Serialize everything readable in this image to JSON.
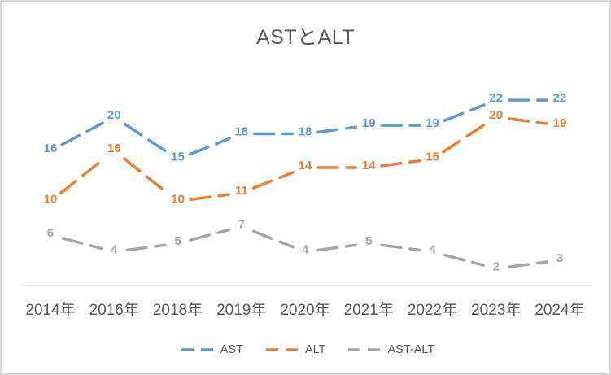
{
  "chart_data": {
    "type": "line",
    "title": "ASTとALT",
    "categories": [
      "2014年",
      "2016年",
      "2018年",
      "2019年",
      "2020年",
      "2021年",
      "2022年",
      "2023年",
      "2024年"
    ],
    "series": [
      {
        "name": "AST",
        "color": "#5B9BD5",
        "values": [
          16,
          20,
          15,
          18,
          18,
          19,
          19,
          22,
          22
        ]
      },
      {
        "name": "ALT",
        "color": "#ED7D31",
        "values": [
          10,
          16,
          10,
          11,
          14,
          14,
          15,
          20,
          19
        ]
      },
      {
        "name": "AST-ALT",
        "color": "#A5A5A5",
        "values": [
          6,
          4,
          5,
          7,
          4,
          5,
          4,
          2,
          3
        ]
      }
    ],
    "ylim": [
      0,
      24
    ],
    "xlabel": "",
    "ylabel": "",
    "grid": false,
    "legend_position": "bottom",
    "line_style": "dashed",
    "data_labels": "center",
    "colors": {
      "text": "#595959",
      "axis_line": "#D9D9D9",
      "border": "#D9D9D9",
      "background": "#FFFFFF"
    }
  }
}
